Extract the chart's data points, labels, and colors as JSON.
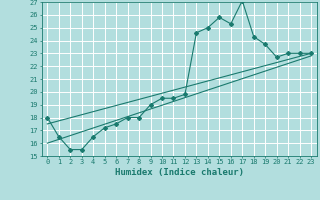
{
  "title": "",
  "xlabel": "Humidex (Indice chaleur)",
  "bg_color": "#b2dede",
  "grid_color": "#ffffff",
  "line_color": "#1a7a6e",
  "xlim": [
    -0.5,
    23.5
  ],
  "ylim": [
    15,
    27
  ],
  "xticks": [
    0,
    1,
    2,
    3,
    4,
    5,
    6,
    7,
    8,
    9,
    10,
    11,
    12,
    13,
    14,
    15,
    16,
    17,
    18,
    19,
    20,
    21,
    22,
    23
  ],
  "yticks": [
    15,
    16,
    17,
    18,
    19,
    20,
    21,
    22,
    23,
    24,
    25,
    26,
    27
  ],
  "main_line_x": [
    0,
    1,
    2,
    3,
    4,
    5,
    6,
    7,
    8,
    9,
    10,
    11,
    12,
    13,
    14,
    15,
    16,
    17,
    18,
    19,
    20,
    21,
    22,
    23
  ],
  "main_line_y": [
    18,
    16.5,
    15.5,
    15.5,
    16.5,
    17.2,
    17.5,
    18.0,
    18.0,
    19.0,
    19.5,
    19.5,
    19.8,
    24.6,
    25.0,
    25.8,
    25.3,
    27.1,
    24.3,
    23.7,
    22.7,
    23.0,
    23.0,
    23.0
  ],
  "trend1_x": [
    0,
    23
  ],
  "trend1_y": [
    17.5,
    23.0
  ],
  "trend2_x": [
    0,
    23
  ],
  "trend2_y": [
    16.0,
    22.8
  ],
  "marker": "D",
  "markersize": 2.0,
  "linewidth": 0.8,
  "tick_fontsize": 5.0,
  "xlabel_fontsize": 6.5
}
